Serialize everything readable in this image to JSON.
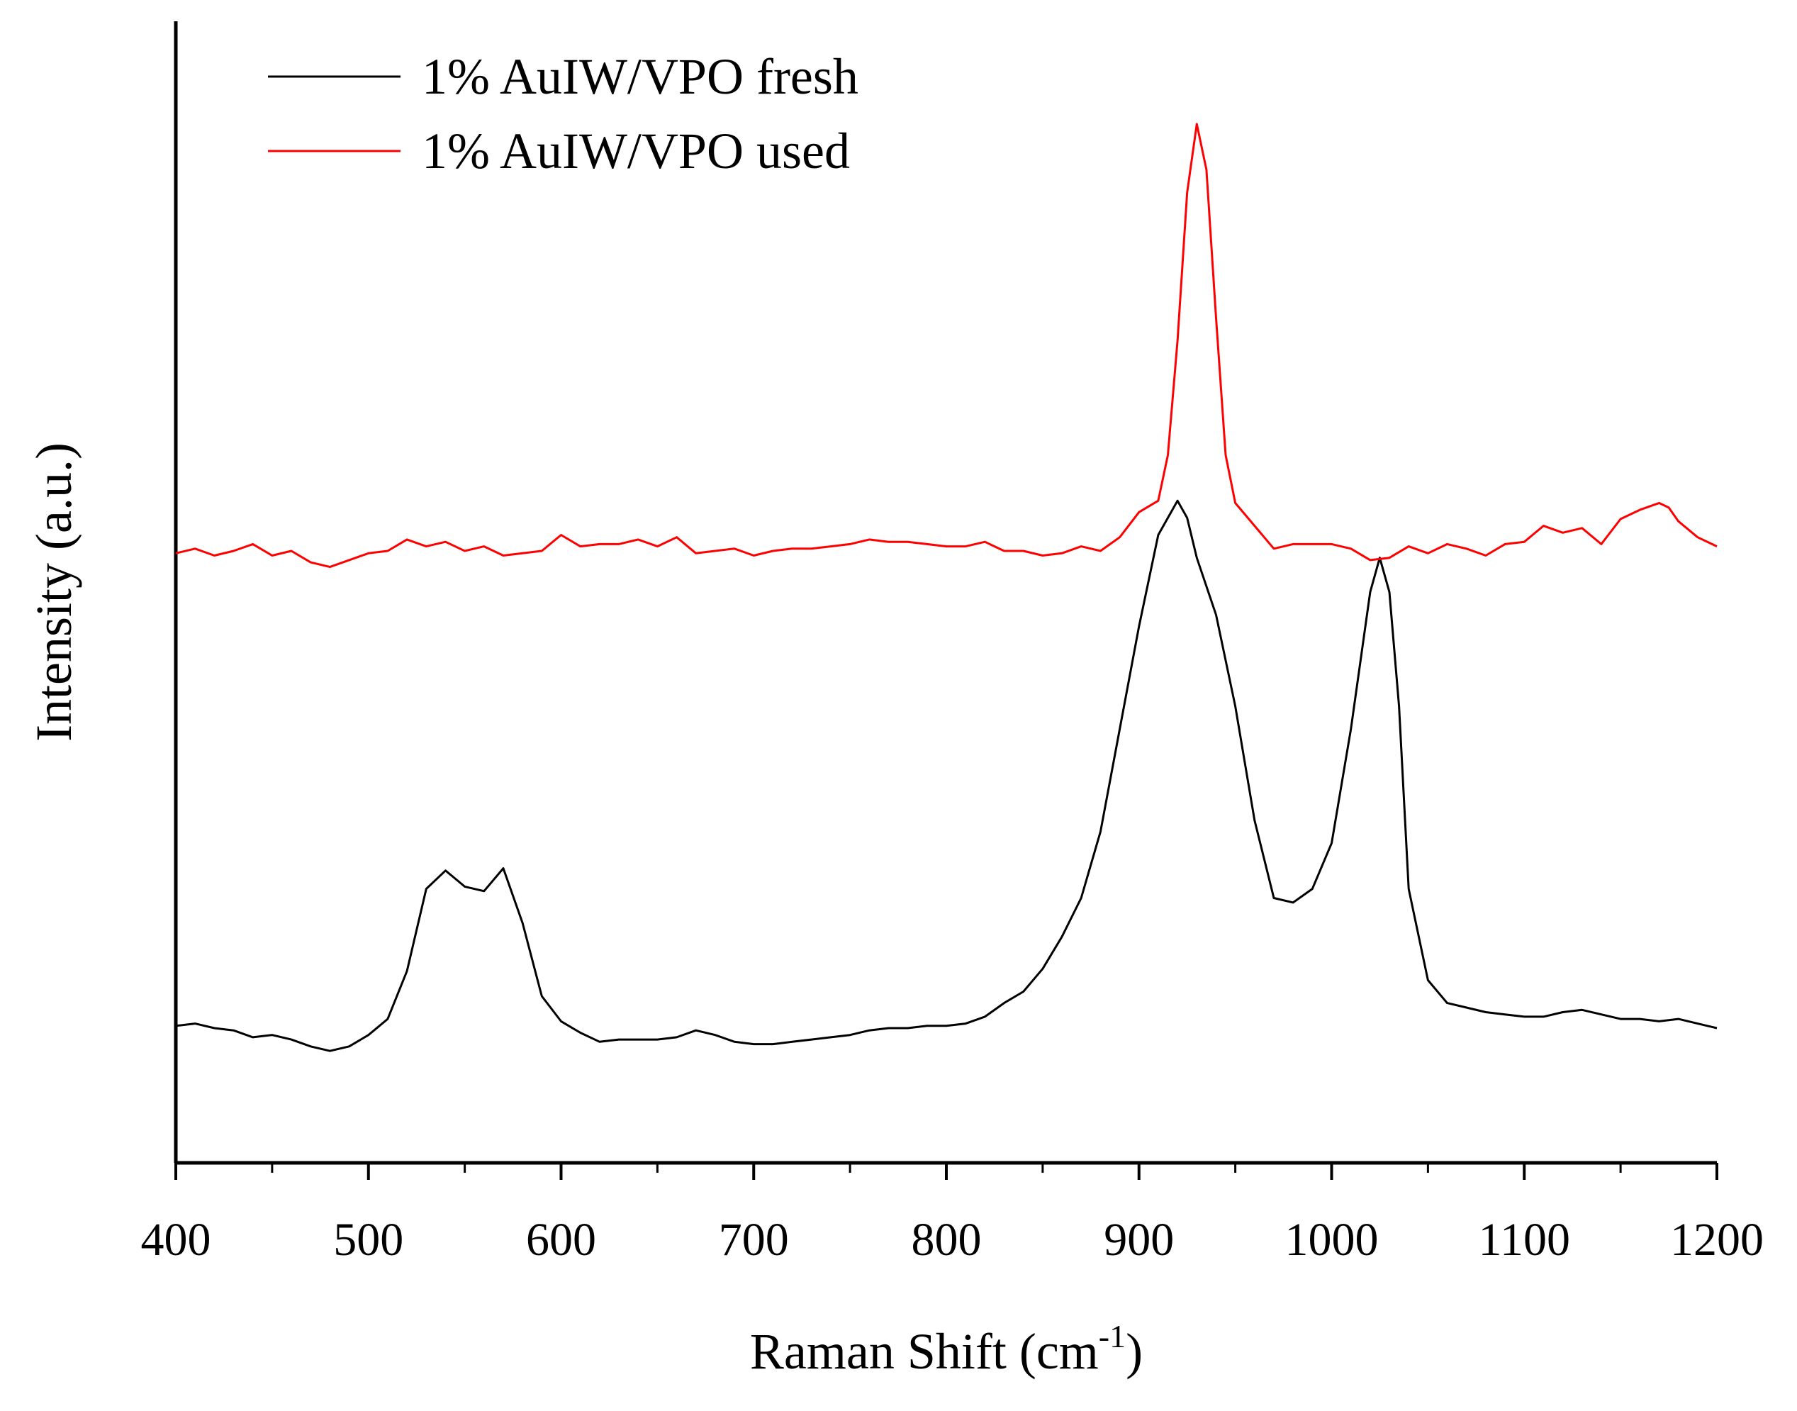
{
  "chart_data": {
    "type": "line",
    "title": "",
    "xlabel": "Raman Shift (cm",
    "xlabel_superscript": "-1",
    "xlabel_suffix": ")",
    "ylabel": "Intensity (a.u.)",
    "xlim": [
      400,
      1200
    ],
    "ylim": [
      0,
      100
    ],
    "x_ticks": [
      400,
      500,
      600,
      700,
      800,
      900,
      1000,
      1100,
      1200
    ],
    "x_tick_labels": [
      "400",
      "500",
      "600",
      "700",
      "800",
      "900",
      "1000",
      "1100",
      "1200"
    ],
    "x_minor_ticks": [
      450,
      550,
      650,
      750,
      850,
      950,
      1050,
      1150
    ],
    "y_ticks_shown": false,
    "grid": false,
    "legend_position": "top-left",
    "series": [
      {
        "name": "1% AuIW/VPO fresh",
        "color": "#000000",
        "x": [
          400,
          410,
          420,
          430,
          440,
          450,
          460,
          470,
          480,
          490,
          500,
          510,
          520,
          530,
          540,
          550,
          560,
          570,
          580,
          590,
          600,
          610,
          620,
          630,
          640,
          650,
          660,
          670,
          680,
          690,
          700,
          710,
          720,
          730,
          740,
          750,
          760,
          770,
          780,
          790,
          800,
          810,
          820,
          830,
          840,
          850,
          860,
          870,
          880,
          890,
          900,
          910,
          920,
          925,
          930,
          940,
          950,
          960,
          970,
          980,
          990,
          1000,
          1010,
          1020,
          1025,
          1030,
          1035,
          1040,
          1050,
          1060,
          1070,
          1080,
          1090,
          1100,
          1110,
          1120,
          1130,
          1140,
          1150,
          1160,
          1170,
          1180,
          1190,
          1200
        ],
        "values": [
          12.0,
          12.2,
          11.8,
          11.6,
          11.0,
          11.2,
          10.8,
          10.2,
          9.8,
          10.2,
          11.2,
          12.6,
          16.8,
          24.0,
          25.6,
          24.2,
          23.8,
          25.8,
          21.0,
          14.6,
          12.4,
          11.4,
          10.6,
          10.8,
          10.8,
          10.8,
          11.0,
          11.6,
          11.2,
          10.6,
          10.4,
          10.4,
          10.6,
          10.8,
          11.0,
          11.2,
          11.6,
          11.8,
          11.8,
          12.0,
          12.0,
          12.2,
          12.8,
          14.0,
          15.0,
          17.0,
          19.8,
          23.2,
          29.0,
          38.0,
          47.0,
          55.0,
          58.0,
          56.5,
          53.0,
          48.0,
          40.0,
          30.0,
          23.2,
          22.8,
          24.0,
          28.0,
          38.0,
          50.0,
          53.0,
          50.0,
          40.0,
          24.0,
          16.0,
          14.0,
          13.6,
          13.2,
          13.0,
          12.8,
          12.8,
          13.2,
          13.4,
          13.0,
          12.6,
          12.6,
          12.4,
          12.6,
          12.2,
          11.8
        ]
      },
      {
        "name": "1% AuIW/VPO used",
        "color": "#ff0000",
        "x": [
          400,
          410,
          420,
          430,
          440,
          450,
          460,
          470,
          480,
          490,
          500,
          510,
          520,
          530,
          540,
          550,
          560,
          570,
          580,
          590,
          600,
          610,
          620,
          630,
          640,
          650,
          660,
          670,
          680,
          690,
          700,
          710,
          720,
          730,
          740,
          750,
          760,
          770,
          780,
          790,
          800,
          810,
          820,
          830,
          840,
          850,
          860,
          870,
          880,
          890,
          900,
          910,
          915,
          920,
          925,
          930,
          935,
          940,
          945,
          950,
          960,
          970,
          980,
          990,
          1000,
          1010,
          1020,
          1030,
          1040,
          1050,
          1060,
          1070,
          1080,
          1090,
          1100,
          1110,
          1120,
          1130,
          1140,
          1150,
          1160,
          1170,
          1175,
          1180,
          1190,
          1200
        ],
        "values": [
          53.4,
          53.8,
          53.2,
          53.6,
          54.2,
          53.2,
          53.6,
          52.6,
          52.2,
          52.8,
          53.4,
          53.6,
          54.6,
          54.0,
          54.4,
          53.6,
          54.0,
          53.2,
          53.4,
          53.6,
          55.0,
          54.0,
          54.2,
          54.2,
          54.6,
          54.0,
          54.8,
          53.4,
          53.6,
          53.8,
          53.2,
          53.6,
          53.8,
          53.8,
          54.0,
          54.2,
          54.6,
          54.4,
          54.4,
          54.2,
          54.0,
          54.0,
          54.4,
          53.6,
          53.6,
          53.2,
          53.4,
          54.0,
          53.6,
          54.8,
          57.0,
          58.0,
          62.0,
          72.0,
          85.0,
          91.0,
          87.0,
          74.0,
          62.0,
          57.8,
          55.8,
          53.8,
          54.2,
          54.2,
          54.2,
          53.8,
          52.8,
          53.0,
          54.0,
          53.4,
          54.2,
          53.8,
          53.2,
          54.2,
          54.4,
          55.8,
          55.2,
          55.6,
          54.2,
          56.4,
          57.2,
          57.8,
          57.4,
          56.2,
          54.8,
          54.0
        ]
      }
    ]
  }
}
